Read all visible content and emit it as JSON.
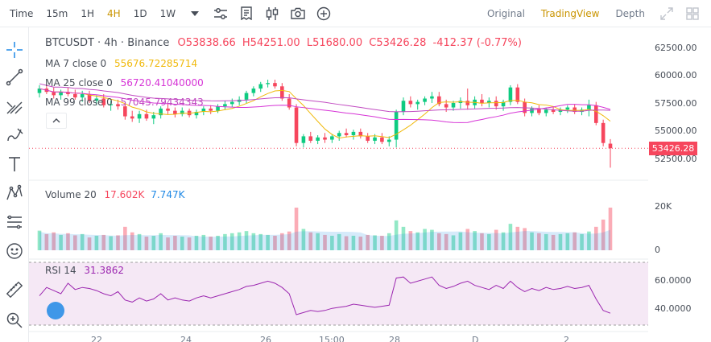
{
  "toolbar": {
    "time_label": "Time",
    "intervals": [
      "15m",
      "1H",
      "4H",
      "1D",
      "1W"
    ],
    "active_interval": "4H"
  },
  "views": {
    "original": "Original",
    "tradingview": "TradingView",
    "depth": "Depth"
  },
  "symbol_legend": {
    "symbol": "BTCUSDT · 4h · Binance",
    "open": "O53838.66",
    "high": "H54251.00",
    "low": "L51680.00",
    "close": "C53426.28",
    "change": "-412.37 (-0.77%)"
  },
  "ma": [
    {
      "label": "MA 7 close 0",
      "value": "55676.72285714",
      "color": "#f0b90b"
    },
    {
      "label": "MA 25 close 0",
      "value": "56720.41040000",
      "color": "#d633d6"
    },
    {
      "label": "MA 99 close 0",
      "value": "57045.79434343",
      "color": "#c14ac1"
    }
  ],
  "volume_legend": {
    "label": "Volume 20",
    "v1": "17.602K",
    "v2": "7.747K"
  },
  "rsi_legend": {
    "label": "RSI 14",
    "value": "31.3862"
  },
  "price_axis": [
    "62500.00",
    "60000.00",
    "57500.00",
    "55000.00",
    "52500.00"
  ],
  "current_price": "53426.28",
  "volume_axis": [
    "20K",
    "0"
  ],
  "rsi_axis": [
    "60.0000",
    "40.0000"
  ],
  "date_axis": [
    "22",
    "24",
    "26",
    "15:00",
    "28",
    "D",
    "2"
  ],
  "colors": {
    "up": "#0ecb81",
    "down": "#f6465d",
    "accent": "#c99400"
  },
  "chart_data": {
    "type": "candlestick",
    "symbol": "BTCUSDT",
    "interval": "4h",
    "price_range": [
      51680,
      62500
    ],
    "candles": [
      [
        58400,
        59100,
        58000,
        58800
      ],
      [
        58800,
        59200,
        58300,
        58500
      ],
      [
        58500,
        58900,
        57900,
        58200
      ],
      [
        58200,
        58700,
        57800,
        58500
      ],
      [
        58500,
        58900,
        58100,
        58300
      ],
      [
        58300,
        58700,
        57800,
        58000
      ],
      [
        58000,
        58600,
        57600,
        58300
      ],
      [
        58300,
        58600,
        57500,
        57700
      ],
      [
        57700,
        58200,
        57300,
        57900
      ],
      [
        57900,
        58300,
        57100,
        57300
      ],
      [
        57300,
        57700,
        56800,
        57400
      ],
      [
        57400,
        57800,
        56900,
        57200
      ],
      [
        57200,
        57500,
        56000,
        56300
      ],
      [
        56300,
        56800,
        55800,
        56100
      ],
      [
        56100,
        56800,
        55700,
        56500
      ],
      [
        56500,
        56900,
        55900,
        56100
      ],
      [
        56100,
        56700,
        55600,
        56400
      ],
      [
        56400,
        57200,
        56100,
        57000
      ],
      [
        57000,
        57400,
        56500,
        56800
      ],
      [
        56800,
        57100,
        56200,
        56500
      ],
      [
        56500,
        57100,
        56300,
        56800
      ],
      [
        56800,
        57000,
        56200,
        56400
      ],
      [
        56400,
        56900,
        56100,
        56700
      ],
      [
        56700,
        57200,
        56400,
        57000
      ],
      [
        57000,
        57300,
        56500,
        56800
      ],
      [
        56800,
        57400,
        56600,
        57200
      ],
      [
        57200,
        57700,
        56900,
        57400
      ],
      [
        57400,
        57900,
        57100,
        57600
      ],
      [
        57600,
        58100,
        57300,
        57800
      ],
      [
        57800,
        58600,
        57500,
        58400
      ],
      [
        58400,
        59000,
        58100,
        58800
      ],
      [
        58800,
        59400,
        58500,
        59200
      ],
      [
        59200,
        59600,
        58900,
        59300
      ],
      [
        59300,
        59600,
        58800,
        59000
      ],
      [
        59000,
        59300,
        57700,
        57900
      ],
      [
        57900,
        58300,
        56900,
        57100
      ],
      [
        57100,
        57400,
        53600,
        53900
      ],
      [
        53900,
        54700,
        53500,
        54500
      ],
      [
        54500,
        54900,
        53900,
        54100
      ],
      [
        54100,
        54600,
        53800,
        54400
      ],
      [
        54400,
        54800,
        53900,
        54200
      ],
      [
        54200,
        54700,
        53900,
        54500
      ],
      [
        54500,
        55000,
        54100,
        54800
      ],
      [
        54800,
        55200,
        54400,
        54600
      ],
      [
        54600,
        55100,
        54200,
        54900
      ],
      [
        54900,
        55200,
        54300,
        54500
      ],
      [
        54500,
        54800,
        53900,
        54100
      ],
      [
        54100,
        54700,
        53800,
        54400
      ],
      [
        54400,
        54800,
        53800,
        54000
      ],
      [
        54000,
        54500,
        53600,
        54200
      ],
      [
        54200,
        56900,
        53500,
        56700
      ],
      [
        56700,
        58000,
        56400,
        57700
      ],
      [
        57700,
        58100,
        57100,
        57400
      ],
      [
        57400,
        57800,
        56900,
        57600
      ],
      [
        57600,
        58100,
        57300,
        57900
      ],
      [
        57900,
        58500,
        57500,
        58100
      ],
      [
        58100,
        58500,
        57200,
        57400
      ],
      [
        57400,
        57800,
        56700,
        57100
      ],
      [
        57100,
        57700,
        56800,
        57500
      ],
      [
        57500,
        58000,
        57000,
        57700
      ],
      [
        57700,
        58800,
        56900,
        57300
      ],
      [
        57300,
        58100,
        57000,
        57800
      ],
      [
        57800,
        58300,
        57200,
        57500
      ],
      [
        57500,
        58000,
        57100,
        57700
      ],
      [
        57700,
        58100,
        56900,
        57200
      ],
      [
        57200,
        57800,
        56800,
        57600
      ],
      [
        57600,
        59100,
        57300,
        58900
      ],
      [
        58900,
        59200,
        57400,
        57600
      ],
      [
        57600,
        57900,
        56300,
        56600
      ],
      [
        56600,
        57200,
        56300,
        57000
      ],
      [
        57000,
        57300,
        56400,
        56600
      ],
      [
        56600,
        57100,
        56300,
        56900
      ],
      [
        56900,
        57200,
        56500,
        56700
      ],
      [
        56700,
        57100,
        56400,
        56900
      ],
      [
        56900,
        57300,
        56600,
        57100
      ],
      [
        57100,
        57400,
        56500,
        56700
      ],
      [
        56700,
        57100,
        56400,
        56900
      ],
      [
        56900,
        57800,
        56300,
        57300
      ],
      [
        57300,
        57600,
        55500,
        55700
      ],
      [
        55700,
        56000,
        53600,
        53900
      ],
      [
        53838.66,
        54251,
        51680,
        53426.28
      ]
    ],
    "volume_ratios": [
      0.46,
      0.38,
      0.42,
      0.36,
      0.4,
      0.35,
      0.38,
      0.3,
      0.34,
      0.36,
      0.33,
      0.35,
      0.55,
      0.42,
      0.38,
      0.32,
      0.34,
      0.4,
      0.3,
      0.34,
      0.32,
      0.3,
      0.34,
      0.36,
      0.32,
      0.34,
      0.38,
      0.4,
      0.42,
      0.45,
      0.4,
      0.38,
      0.36,
      0.34,
      0.4,
      0.44,
      1.0,
      0.5,
      0.42,
      0.4,
      0.36,
      0.34,
      0.38,
      0.33,
      0.34,
      0.32,
      0.36,
      0.35,
      0.34,
      0.4,
      0.7,
      0.55,
      0.45,
      0.42,
      0.5,
      0.48,
      0.4,
      0.38,
      0.35,
      0.42,
      0.5,
      0.45,
      0.4,
      0.38,
      0.48,
      0.42,
      0.62,
      0.55,
      0.52,
      0.42,
      0.4,
      0.38,
      0.36,
      0.38,
      0.4,
      0.42,
      0.38,
      0.44,
      0.55,
      0.72,
      1.0
    ],
    "rsi": [
      48,
      56,
      53,
      50,
      60,
      54,
      56,
      55,
      53,
      50,
      48,
      52,
      44,
      42,
      46,
      43,
      45,
      50,
      44,
      46,
      44,
      43,
      46,
      48,
      46,
      48,
      50,
      52,
      54,
      57,
      58,
      60,
      62,
      60,
      56,
      50,
      30,
      32,
      34,
      33,
      34,
      36,
      37,
      38,
      40,
      39,
      38,
      37,
      38,
      39,
      65,
      66,
      60,
      62,
      64,
      66,
      58,
      55,
      57,
      60,
      62,
      58,
      56,
      54,
      58,
      55,
      62,
      56,
      52,
      55,
      53,
      56,
      54,
      55,
      57,
      55,
      56,
      58,
      45,
      34,
      31.3862
    ],
    "volume_axis": [
      0,
      20000
    ],
    "rsi_axis": [
      40,
      60
    ],
    "date_ticks": [
      "22",
      "24",
      "26",
      "15:00",
      "28",
      "D",
      "2"
    ]
  }
}
